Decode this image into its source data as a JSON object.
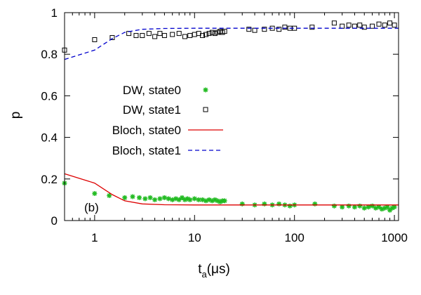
{
  "chart_data": {
    "type": "scatter",
    "xlabel": "t",
    "xlabel_sub": "a",
    "xlabel_unit": "(μs)",
    "ylabel": "p",
    "xscale": "log",
    "xlim": [
      0.5,
      1100
    ],
    "ylim": [
      0,
      1
    ],
    "x_ticks": [
      1,
      10,
      100,
      1000
    ],
    "x_tick_labels": [
      "1",
      "10",
      "100",
      "1000"
    ],
    "y_ticks": [
      0,
      0.2,
      0.4,
      0.6,
      0.8,
      1
    ],
    "y_tick_labels": [
      "0",
      "0.2",
      "0.4",
      "0.6",
      "0.8",
      "1"
    ],
    "annotation": "(b)",
    "legend_position": "center-left",
    "series": [
      {
        "name": "DW, state0",
        "kind": "points",
        "marker": "star",
        "color": "#22bb22",
        "x": [
          0.5,
          1.0,
          1.4,
          2,
          2.4,
          2.8,
          3.2,
          3.6,
          4,
          4.5,
          5,
          5.5,
          6,
          6.5,
          7,
          7.5,
          8,
          8.5,
          9,
          10,
          11,
          12,
          13,
          14,
          15,
          16,
          17,
          18,
          19,
          20,
          30,
          40,
          50,
          60,
          70,
          80,
          90,
          100,
          160,
          250,
          300,
          350,
          400,
          450,
          500,
          550,
          600,
          650,
          700,
          750,
          800,
          850,
          900,
          950,
          1000
        ],
        "y": [
          0.18,
          0.13,
          0.12,
          0.11,
          0.115,
          0.11,
          0.105,
          0.11,
          0.1,
          0.105,
          0.11,
          0.105,
          0.1,
          0.105,
          0.1,
          0.11,
          0.1,
          0.105,
          0.1,
          0.105,
          0.1,
          0.1,
          0.095,
          0.1,
          0.095,
          0.1,
          0.095,
          0.09,
          0.095,
          0.095,
          0.08,
          0.075,
          0.08,
          0.075,
          0.08,
          0.075,
          0.07,
          0.075,
          0.08,
          0.07,
          0.065,
          0.07,
          0.065,
          0.07,
          0.06,
          0.065,
          0.07,
          0.06,
          0.065,
          0.055,
          0.06,
          0.065,
          0.05,
          0.06,
          0.065
        ]
      },
      {
        "name": "DW, state1",
        "kind": "points",
        "marker": "open-square",
        "color": "#000000",
        "x": [
          0.5,
          1.0,
          1.5,
          2.2,
          2.6,
          3.0,
          3.5,
          4,
          4.5,
          5,
          6,
          7,
          8,
          9,
          10,
          11,
          12,
          13,
          14,
          15,
          16,
          17,
          18,
          19,
          20,
          35,
          40,
          50,
          60,
          70,
          80,
          90,
          100,
          150,
          250,
          300,
          350,
          400,
          450,
          500,
          600,
          700,
          800,
          900,
          1000
        ],
        "y": [
          0.82,
          0.87,
          0.88,
          0.9,
          0.89,
          0.89,
          0.9,
          0.885,
          0.9,
          0.89,
          0.895,
          0.9,
          0.885,
          0.89,
          0.895,
          0.9,
          0.89,
          0.895,
          0.9,
          0.905,
          0.9,
          0.905,
          0.91,
          0.905,
          0.91,
          0.92,
          0.915,
          0.92,
          0.925,
          0.92,
          0.93,
          0.925,
          0.925,
          0.93,
          0.95,
          0.935,
          0.94,
          0.935,
          0.94,
          0.93,
          0.935,
          0.945,
          0.94,
          0.95,
          0.94
        ]
      },
      {
        "name": "Bloch, state0",
        "kind": "line",
        "dash": "solid",
        "color": "#dd0000",
        "x": [
          0.5,
          1.0,
          1.5,
          2,
          3,
          5,
          10,
          100,
          1000,
          1100
        ],
        "y": [
          0.225,
          0.18,
          0.125,
          0.095,
          0.08,
          0.076,
          0.075,
          0.075,
          0.075,
          0.075
        ]
      },
      {
        "name": "Bloch, state1",
        "kind": "line",
        "dash": "dashed",
        "color": "#0000cc",
        "x": [
          0.5,
          1.0,
          1.5,
          2,
          3,
          5,
          10,
          100,
          1000,
          1100
        ],
        "y": [
          0.775,
          0.82,
          0.875,
          0.905,
          0.92,
          0.924,
          0.925,
          0.925,
          0.925,
          0.925
        ]
      }
    ]
  }
}
